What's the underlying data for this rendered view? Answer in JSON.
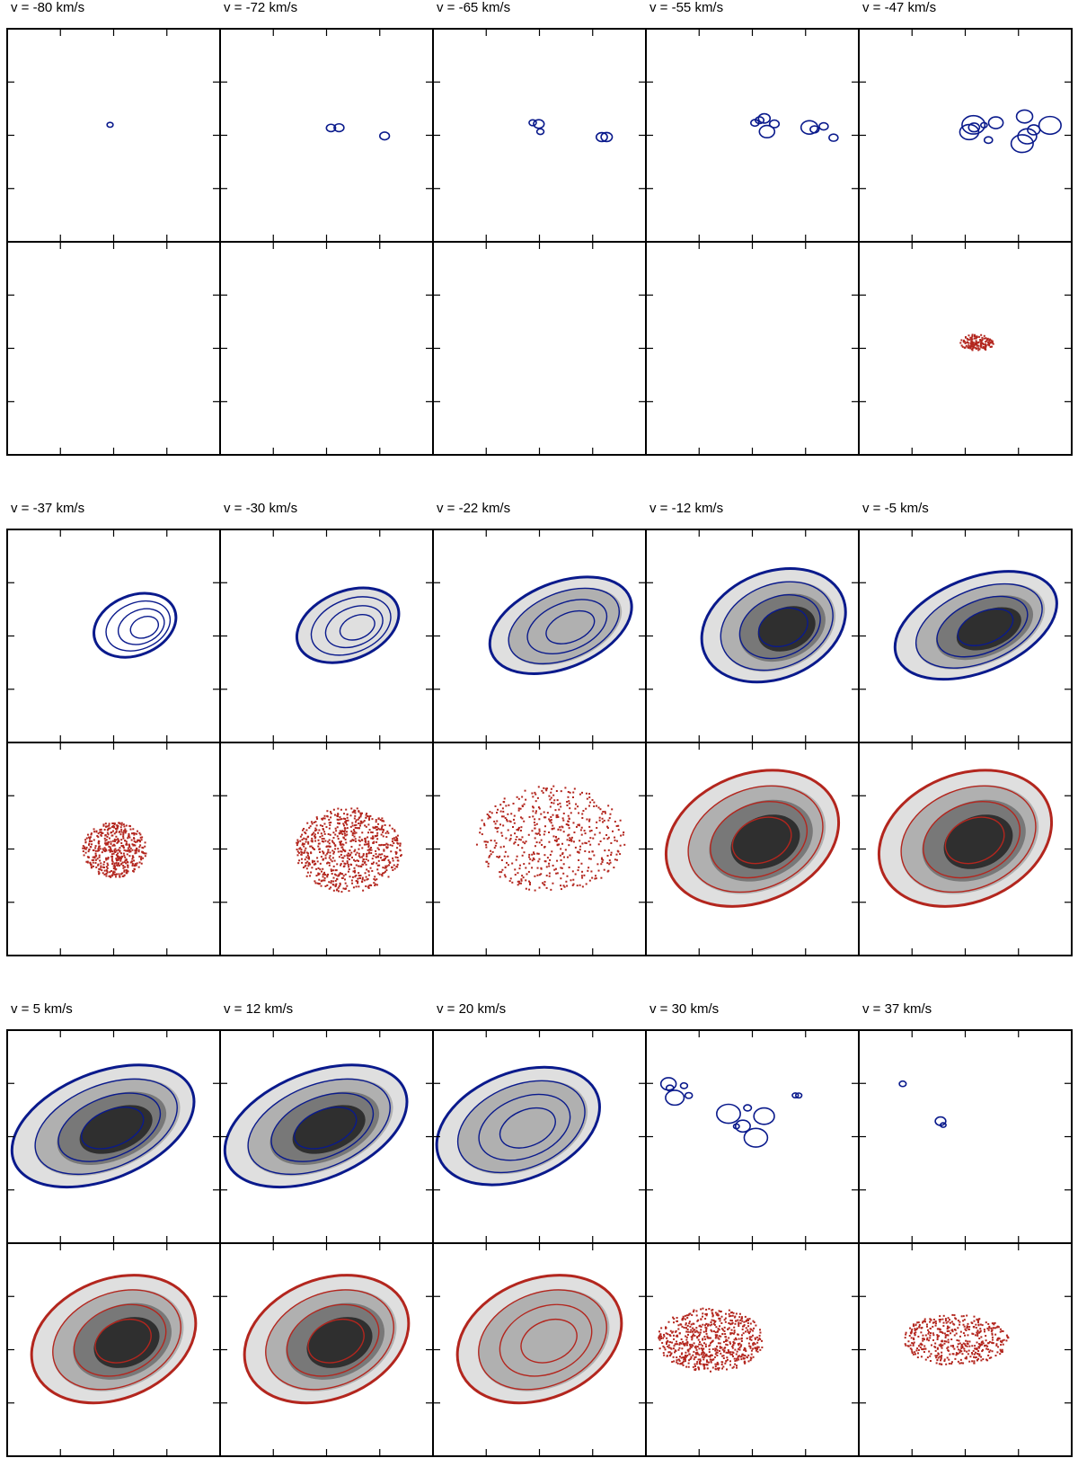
{
  "figure": {
    "rows": [
      {
        "labels": [
          "v = -80 km/s",
          "v = -72 km/s",
          "v = -65 km/s",
          "v = -55 km/s",
          "v = -47 km/s"
        ],
        "blue": [
          {
            "spots": [
              [
                0.5,
                0.45,
                0.03
              ]
            ]
          },
          {
            "spots": [
              [
                0.52,
                0.45,
                0.05
              ],
              [
                0.78,
                0.5,
                0.03
              ]
            ]
          },
          {
            "spots": [
              [
                0.5,
                0.45,
                0.07
              ],
              [
                0.78,
                0.5,
                0.04
              ]
            ]
          },
          {
            "spots": [
              [
                0.55,
                0.45,
                0.12
              ],
              [
                0.8,
                0.48,
                0.1
              ]
            ]
          },
          {
            "spots": [
              [
                0.6,
                0.45,
                0.14
              ],
              [
                0.78,
                0.47,
                0.13
              ]
            ]
          }
        ],
        "red": [
          null,
          null,
          null,
          null,
          {
            "cloud": [
              0.55,
              0.47,
              0.08,
              0.04,
              0.15
            ]
          }
        ]
      },
      {
        "labels": [
          "v = -37 km/s",
          "v = -30 km/s",
          "v = -22 km/s",
          "v = -12 km/s",
          "v = -5 km/s"
        ],
        "blue": [
          {
            "ellipse": [
              0.6,
              0.45,
              0.2,
              0.14,
              0.0
            ]
          },
          {
            "ellipse": [
              0.6,
              0.45,
              0.25,
              0.16,
              0.1
            ]
          },
          {
            "ellipse": [
              0.6,
              0.45,
              0.35,
              0.2,
              0.4
            ]
          },
          {
            "ellipse": [
              0.6,
              0.45,
              0.35,
              0.25,
              0.85
            ]
          },
          {
            "ellipse": [
              0.55,
              0.45,
              0.4,
              0.22,
              0.9
            ]
          }
        ],
        "red": [
          {
            "cloud": [
              0.5,
              0.5,
              0.15,
              0.13,
              0.6
            ]
          },
          {
            "cloud": [
              0.6,
              0.5,
              0.25,
              0.2,
              1.0
            ]
          },
          {
            "cloud": [
              0.55,
              0.45,
              0.35,
              0.25,
              0.7
            ]
          },
          {
            "ellipse": [
              0.5,
              0.45,
              0.42,
              0.3,
              0.85
            ]
          },
          {
            "ellipse": [
              0.5,
              0.45,
              0.42,
              0.3,
              0.9
            ]
          }
        ]
      },
      {
        "labels": [
          "v = 5 km/s",
          "v = 12 km/s",
          "v = 20 km/s",
          "v = 30 km/s",
          "v = 37 km/s"
        ],
        "blue": [
          {
            "ellipse": [
              0.45,
              0.45,
              0.45,
              0.25,
              0.9
            ]
          },
          {
            "ellipse": [
              0.45,
              0.45,
              0.45,
              0.25,
              0.85
            ]
          },
          {
            "ellipse": [
              0.4,
              0.45,
              0.4,
              0.25,
              0.5
            ]
          },
          {
            "spots": [
              [
                0.2,
                0.3,
                0.12
              ],
              [
                0.5,
                0.45,
                0.14
              ],
              [
                0.75,
                0.3,
                0.05
              ]
            ]
          },
          {
            "spots": [
              [
                0.2,
                0.25,
                0.02
              ],
              [
                0.4,
                0.45,
                0.04
              ]
            ]
          }
        ],
        "red": [
          {
            "ellipse": [
              0.5,
              0.45,
              0.4,
              0.28,
              0.9
            ]
          },
          {
            "ellipse": [
              0.5,
              0.45,
              0.4,
              0.28,
              0.85
            ]
          },
          {
            "ellipse": [
              0.5,
              0.45,
              0.4,
              0.28,
              0.5
            ]
          },
          {
            "cloud": [
              0.3,
              0.45,
              0.25,
              0.15,
              0.9
            ]
          },
          {
            "cloud": [
              0.45,
              0.45,
              0.25,
              0.12,
              0.6
            ]
          }
        ]
      }
    ]
  }
}
